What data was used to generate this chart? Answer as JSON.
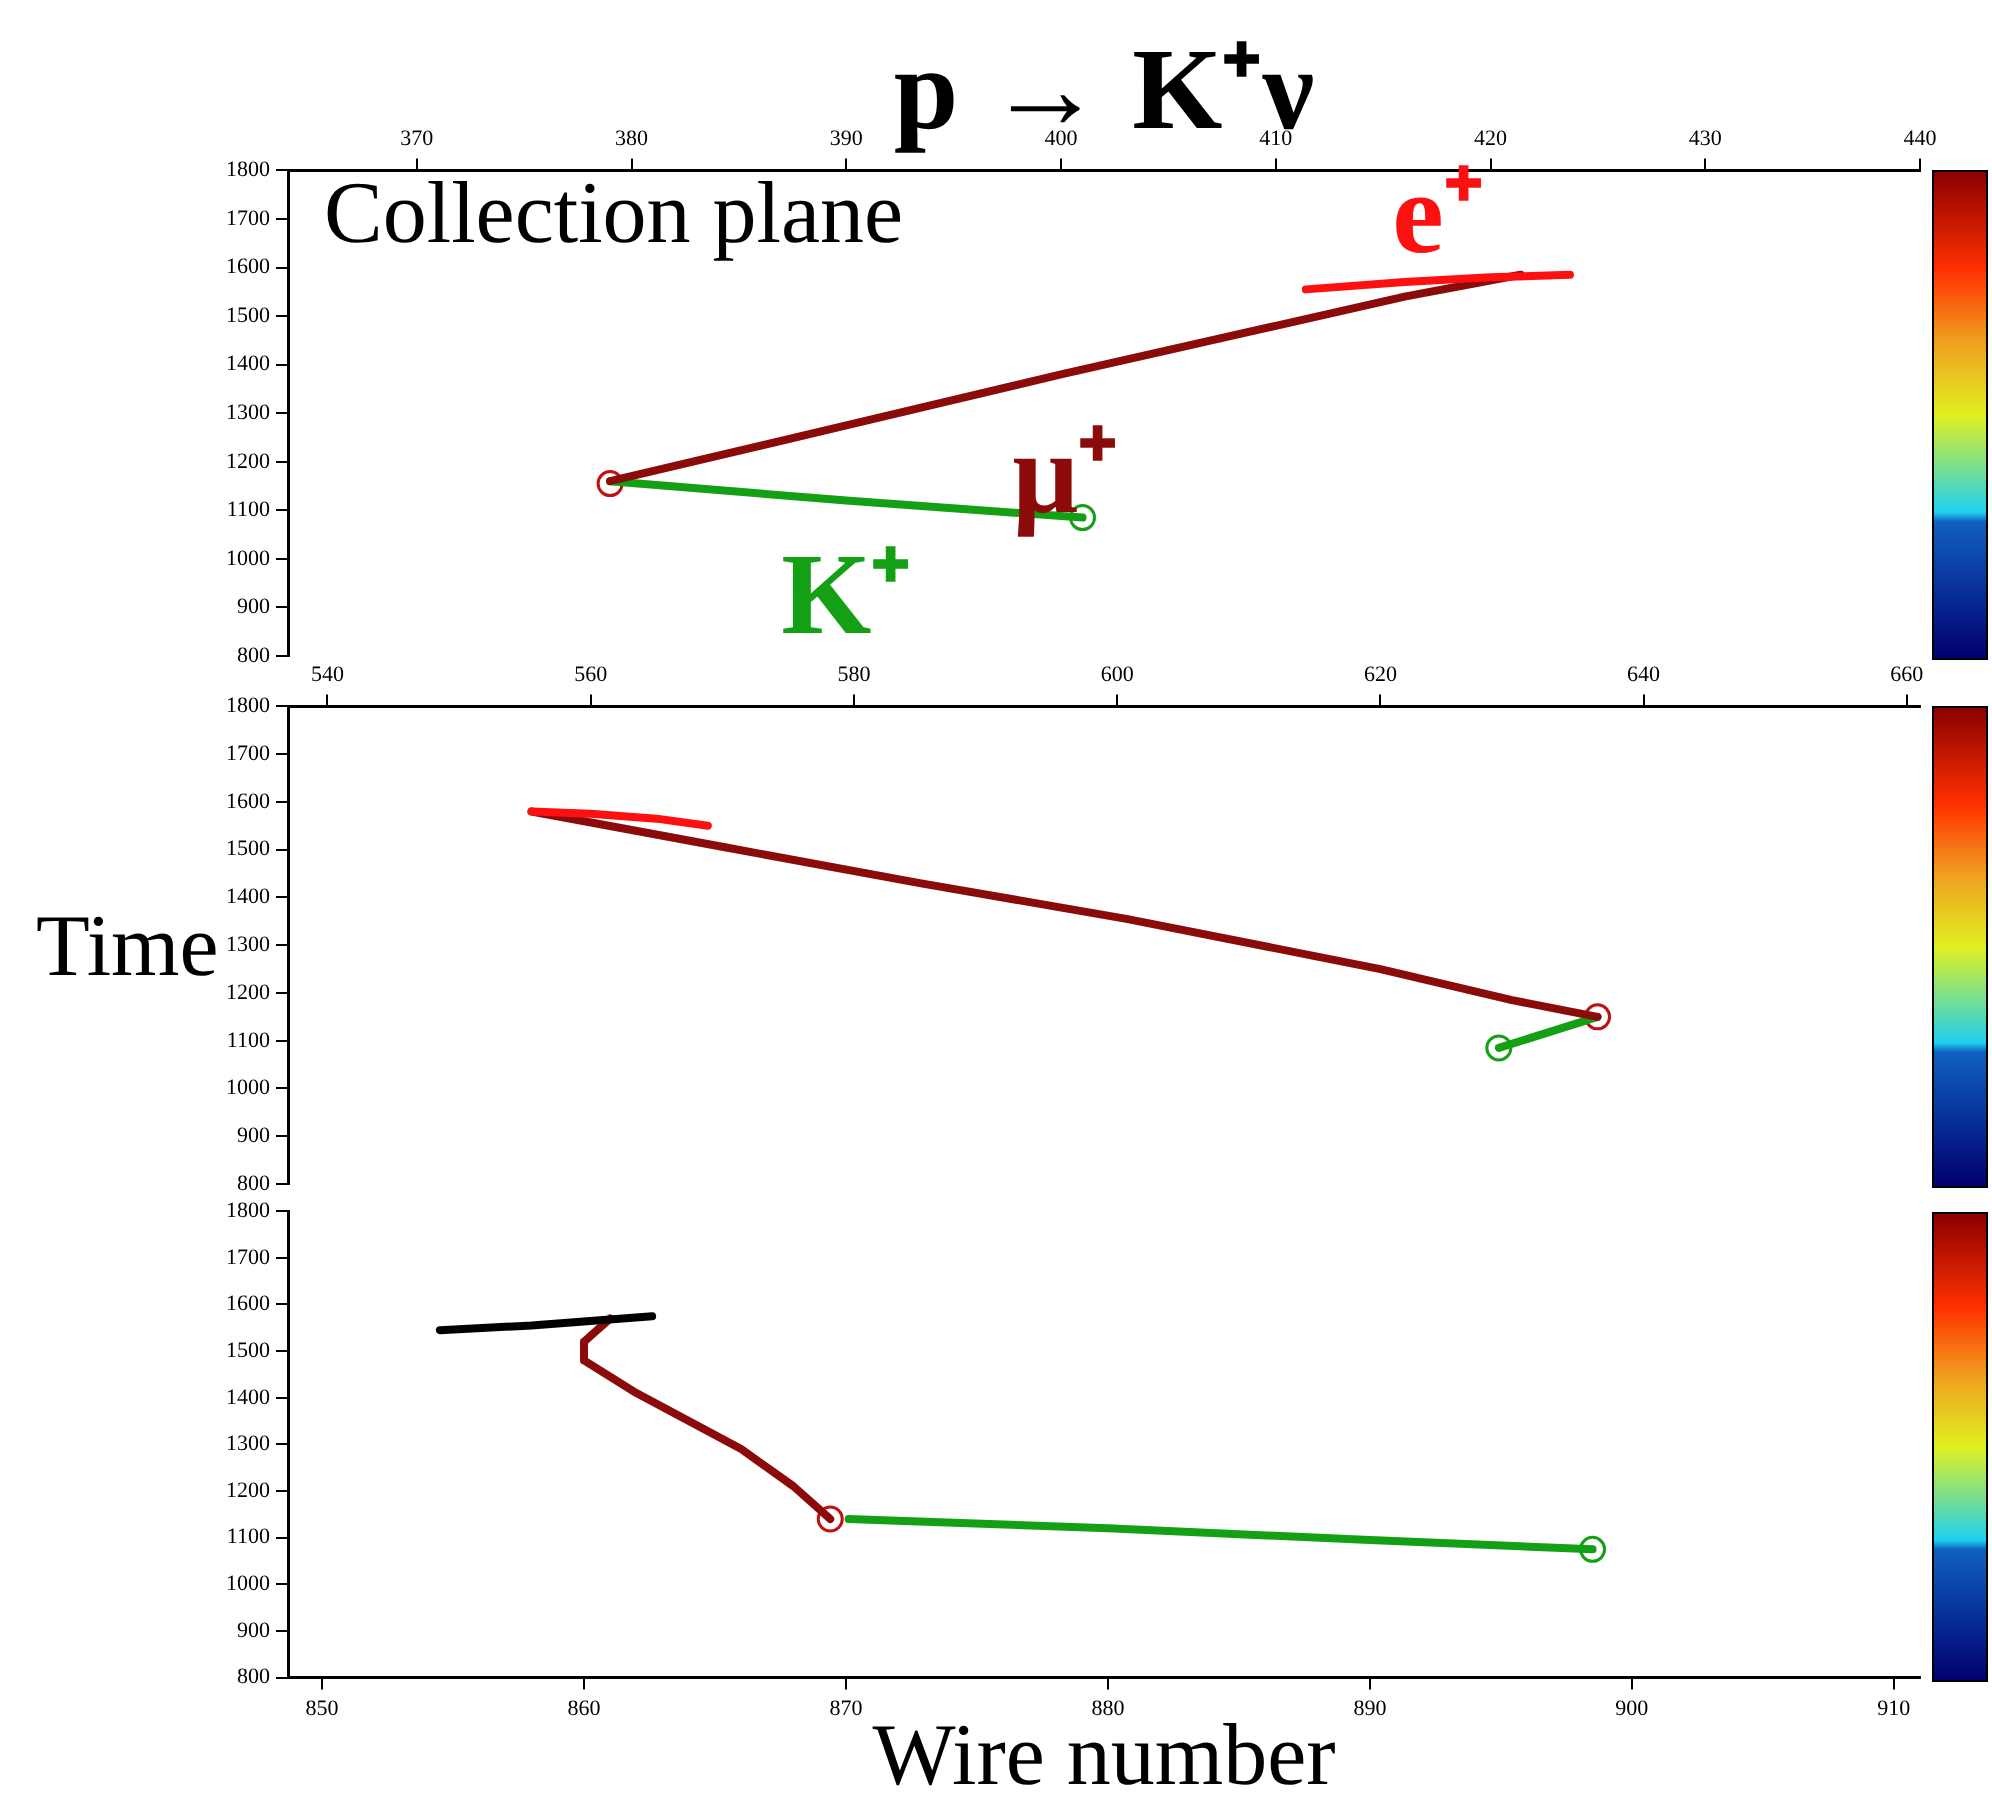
{
  "chart_data": [
    {
      "type": "line",
      "title": "p → K⁺ν",
      "xlim": [
        364,
        440
      ],
      "xticks": [
        370,
        380,
        390,
        400,
        410,
        420,
        430,
        440
      ],
      "ylim": [
        800,
        1800
      ],
      "yticks": [
        800,
        900,
        1000,
        1100,
        1200,
        1300,
        1400,
        1500,
        1600,
        1700,
        1800
      ],
      "grid": false,
      "legend": false,
      "marker": "none",
      "line_style": "solid",
      "annotations": [
        "Collection plane"
      ],
      "series": [
        {
          "name": "e⁺",
          "color": "#ff1010",
          "x": [
            411.4,
            416,
            420,
            423.7
          ],
          "values": [
            1555,
            1570,
            1580,
            1585
          ]
        },
        {
          "name": "μ⁺",
          "color": "#8b0a0a",
          "x": [
            379,
            390,
            400,
            410,
            416,
            421.4
          ],
          "values": [
            1160,
            1275,
            1380,
            1480,
            1540,
            1585
          ]
        },
        {
          "name": "K⁺",
          "color": "#14a014",
          "x": [
            379,
            390,
            401
          ],
          "values": [
            1160,
            1120,
            1085
          ]
        },
        {
          "type": "scatter",
          "marker": "circle",
          "color": "#c01010",
          "x": [
            379
          ],
          "values": [
            1155
          ]
        },
        {
          "type": "scatter",
          "marker": "circle",
          "color": "#14a014",
          "x": [
            401
          ],
          "values": [
            1085
          ]
        }
      ]
    },
    {
      "type": "line",
      "ylabel": "Time",
      "xlim": [
        537,
        661
      ],
      "xticks": [
        540,
        560,
        580,
        600,
        620,
        640,
        660
      ],
      "ylim": [
        800,
        1800
      ],
      "yticks": [
        800,
        900,
        1000,
        1100,
        1200,
        1300,
        1400,
        1500,
        1600,
        1700,
        1800
      ],
      "grid": false,
      "legend": false,
      "marker": "none",
      "line_style": "solid",
      "series": [
        {
          "color": "#ff1010",
          "x": [
            555.5,
            560,
            565,
            568.9
          ],
          "values": [
            1580,
            1575,
            1565,
            1550
          ]
        },
        {
          "color": "#8b0a0a",
          "x": [
            555.5,
            570.2,
            585,
            600.7,
            620,
            630,
            636.5
          ],
          "values": [
            1580,
            1505,
            1430,
            1355,
            1250,
            1185,
            1150
          ]
        },
        {
          "color": "#14a014",
          "x": [
            636.5,
            629
          ],
          "values": [
            1150,
            1085
          ]
        },
        {
          "type": "scatter",
          "marker": "circle",
          "color": "#c01010",
          "x": [
            636.5
          ],
          "values": [
            1150
          ]
        },
        {
          "type": "scatter",
          "marker": "circle",
          "color": "#14a014",
          "x": [
            629
          ],
          "values": [
            1085
          ]
        }
      ]
    },
    {
      "type": "line",
      "xlabel": "Wire number",
      "xlim": [
        848.7,
        911
      ],
      "xticks": [
        850,
        860,
        870,
        880,
        890,
        900,
        910
      ],
      "ylim": [
        800,
        1800
      ],
      "yticks": [
        800,
        900,
        1000,
        1100,
        1200,
        1300,
        1400,
        1500,
        1600,
        1700,
        1800
      ],
      "grid": false,
      "legend": false,
      "marker": "none",
      "line_style": "solid",
      "series": [
        {
          "color": "#000000",
          "x": [
            854.5,
            858,
            862.6
          ],
          "values": [
            1545,
            1555,
            1575
          ]
        },
        {
          "color": "#8b0a0a",
          "x": [
            861,
            860,
            860,
            862,
            864,
            866,
            868,
            869.4
          ],
          "values": [
            1570,
            1520,
            1480,
            1410,
            1350,
            1290,
            1210,
            1140
          ]
        },
        {
          "color": "#14a014",
          "x": [
            870.1,
            880,
            890,
            898.5
          ],
          "values": [
            1140,
            1120,
            1095,
            1075
          ]
        },
        {
          "type": "scatter",
          "marker": "circle",
          "color": "#c01010",
          "x": [
            869.4
          ],
          "values": [
            1140
          ]
        },
        {
          "type": "scatter",
          "marker": "circle",
          "color": "#14a014",
          "x": [
            898.5
          ],
          "values": [
            1075
          ]
        }
      ]
    }
  ]
}
